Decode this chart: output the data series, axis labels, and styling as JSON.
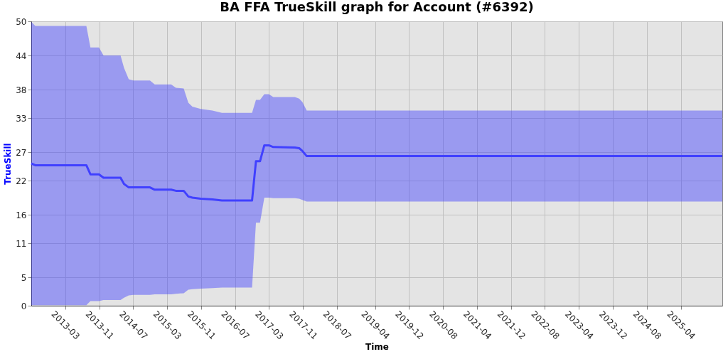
{
  "chart_data": {
    "type": "line",
    "title": "BA FFA TrueSkill graph for Account (#6392)",
    "xlabel": "Time",
    "ylabel": "TrueSkill",
    "x": [
      "2012-07-01",
      "2012-07-30",
      "2013-07-31",
      "2013-08-29",
      "2013-10-29",
      "2013-12-01",
      "2014-04-02",
      "2014-04-27",
      "2014-05-31",
      "2014-07-04",
      "2014-10-30",
      "2014-12-03",
      "2015-03-31",
      "2015-05-04",
      "2015-06-29",
      "2015-08-01",
      "2015-08-30",
      "2015-10-29",
      "2016-01-21",
      "2016-03-29",
      "2016-10-31",
      "2016-11-28",
      "2016-12-27",
      "2017-01-27",
      "2017-03-01",
      "2017-04-01",
      "2017-09-03",
      "2017-10-04",
      "2017-10-27",
      "2017-11-27",
      "2026-01-24"
    ],
    "series": [
      {
        "color": "#4040ff",
        "values": [
          25.0,
          24.7,
          24.7,
          23.1,
          23.1,
          22.5,
          22.5,
          21.4,
          20.8,
          20.8,
          20.8,
          20.4,
          20.4,
          20.2,
          20.2,
          19.2,
          19.0,
          18.8,
          18.7,
          18.5,
          18.5,
          25.4,
          25.4,
          28.2,
          28.2,
          27.9,
          27.8,
          27.7,
          27.2,
          26.3,
          26.3
        ],
        "lower": [
          0.1,
          0.1,
          0.1,
          0.8,
          0.8,
          1.0,
          1.0,
          1.4,
          1.8,
          1.9,
          1.9,
          2.0,
          2.0,
          2.1,
          2.2,
          2.8,
          2.9,
          3.0,
          3.1,
          3.2,
          3.2,
          14.6,
          14.6,
          19.0,
          19.0,
          18.9,
          18.9,
          18.8,
          18.6,
          18.3,
          18.3
        ],
        "upper": [
          49.9,
          49.2,
          49.2,
          45.4,
          45.4,
          44.0,
          44.0,
          41.8,
          39.8,
          39.6,
          39.6,
          38.9,
          38.9,
          38.3,
          38.2,
          35.7,
          35.0,
          34.6,
          34.3,
          33.9,
          33.9,
          36.2,
          36.2,
          37.2,
          37.2,
          36.7,
          36.7,
          36.4,
          35.8,
          34.3,
          34.3
        ]
      }
    ],
    "xlim": [
      "2012-07-01",
      "2026-01-24"
    ],
    "xticks": [
      {
        "value": "2013-03",
        "label": "2013-03"
      },
      {
        "value": "2013-11",
        "label": "2013-11"
      },
      {
        "value": "2014-07",
        "label": "2014-07"
      },
      {
        "value": "2015-03",
        "label": "2015-03"
      },
      {
        "value": "2015-11",
        "label": "2015-11"
      },
      {
        "value": "2016-07",
        "label": "2016-07"
      },
      {
        "value": "2017-03",
        "label": "2017-03"
      },
      {
        "value": "2017-11",
        "label": "2017-11"
      },
      {
        "value": "2018-07",
        "label": "2018-07"
      },
      {
        "value": "2019-04",
        "label": "2019-04"
      },
      {
        "value": "2019-12",
        "label": "2019-12"
      },
      {
        "value": "2020-08",
        "label": "2020-08"
      },
      {
        "value": "2021-04",
        "label": "2021-04"
      },
      {
        "value": "2021-12",
        "label": "2021-12"
      },
      {
        "value": "2022-08",
        "label": "2022-08"
      },
      {
        "value": "2023-04",
        "label": "2023-04"
      },
      {
        "value": "2023-12",
        "label": "2023-12"
      },
      {
        "value": "2024-08",
        "label": "2024-08"
      },
      {
        "value": "2025-04",
        "label": "2025-04"
      }
    ],
    "ylim": [
      0,
      50
    ],
    "yticks": [
      0,
      5,
      11,
      16,
      22,
      27,
      33,
      38,
      44,
      50
    ],
    "grid": true,
    "marker": "none",
    "line_style": "solid"
  }
}
